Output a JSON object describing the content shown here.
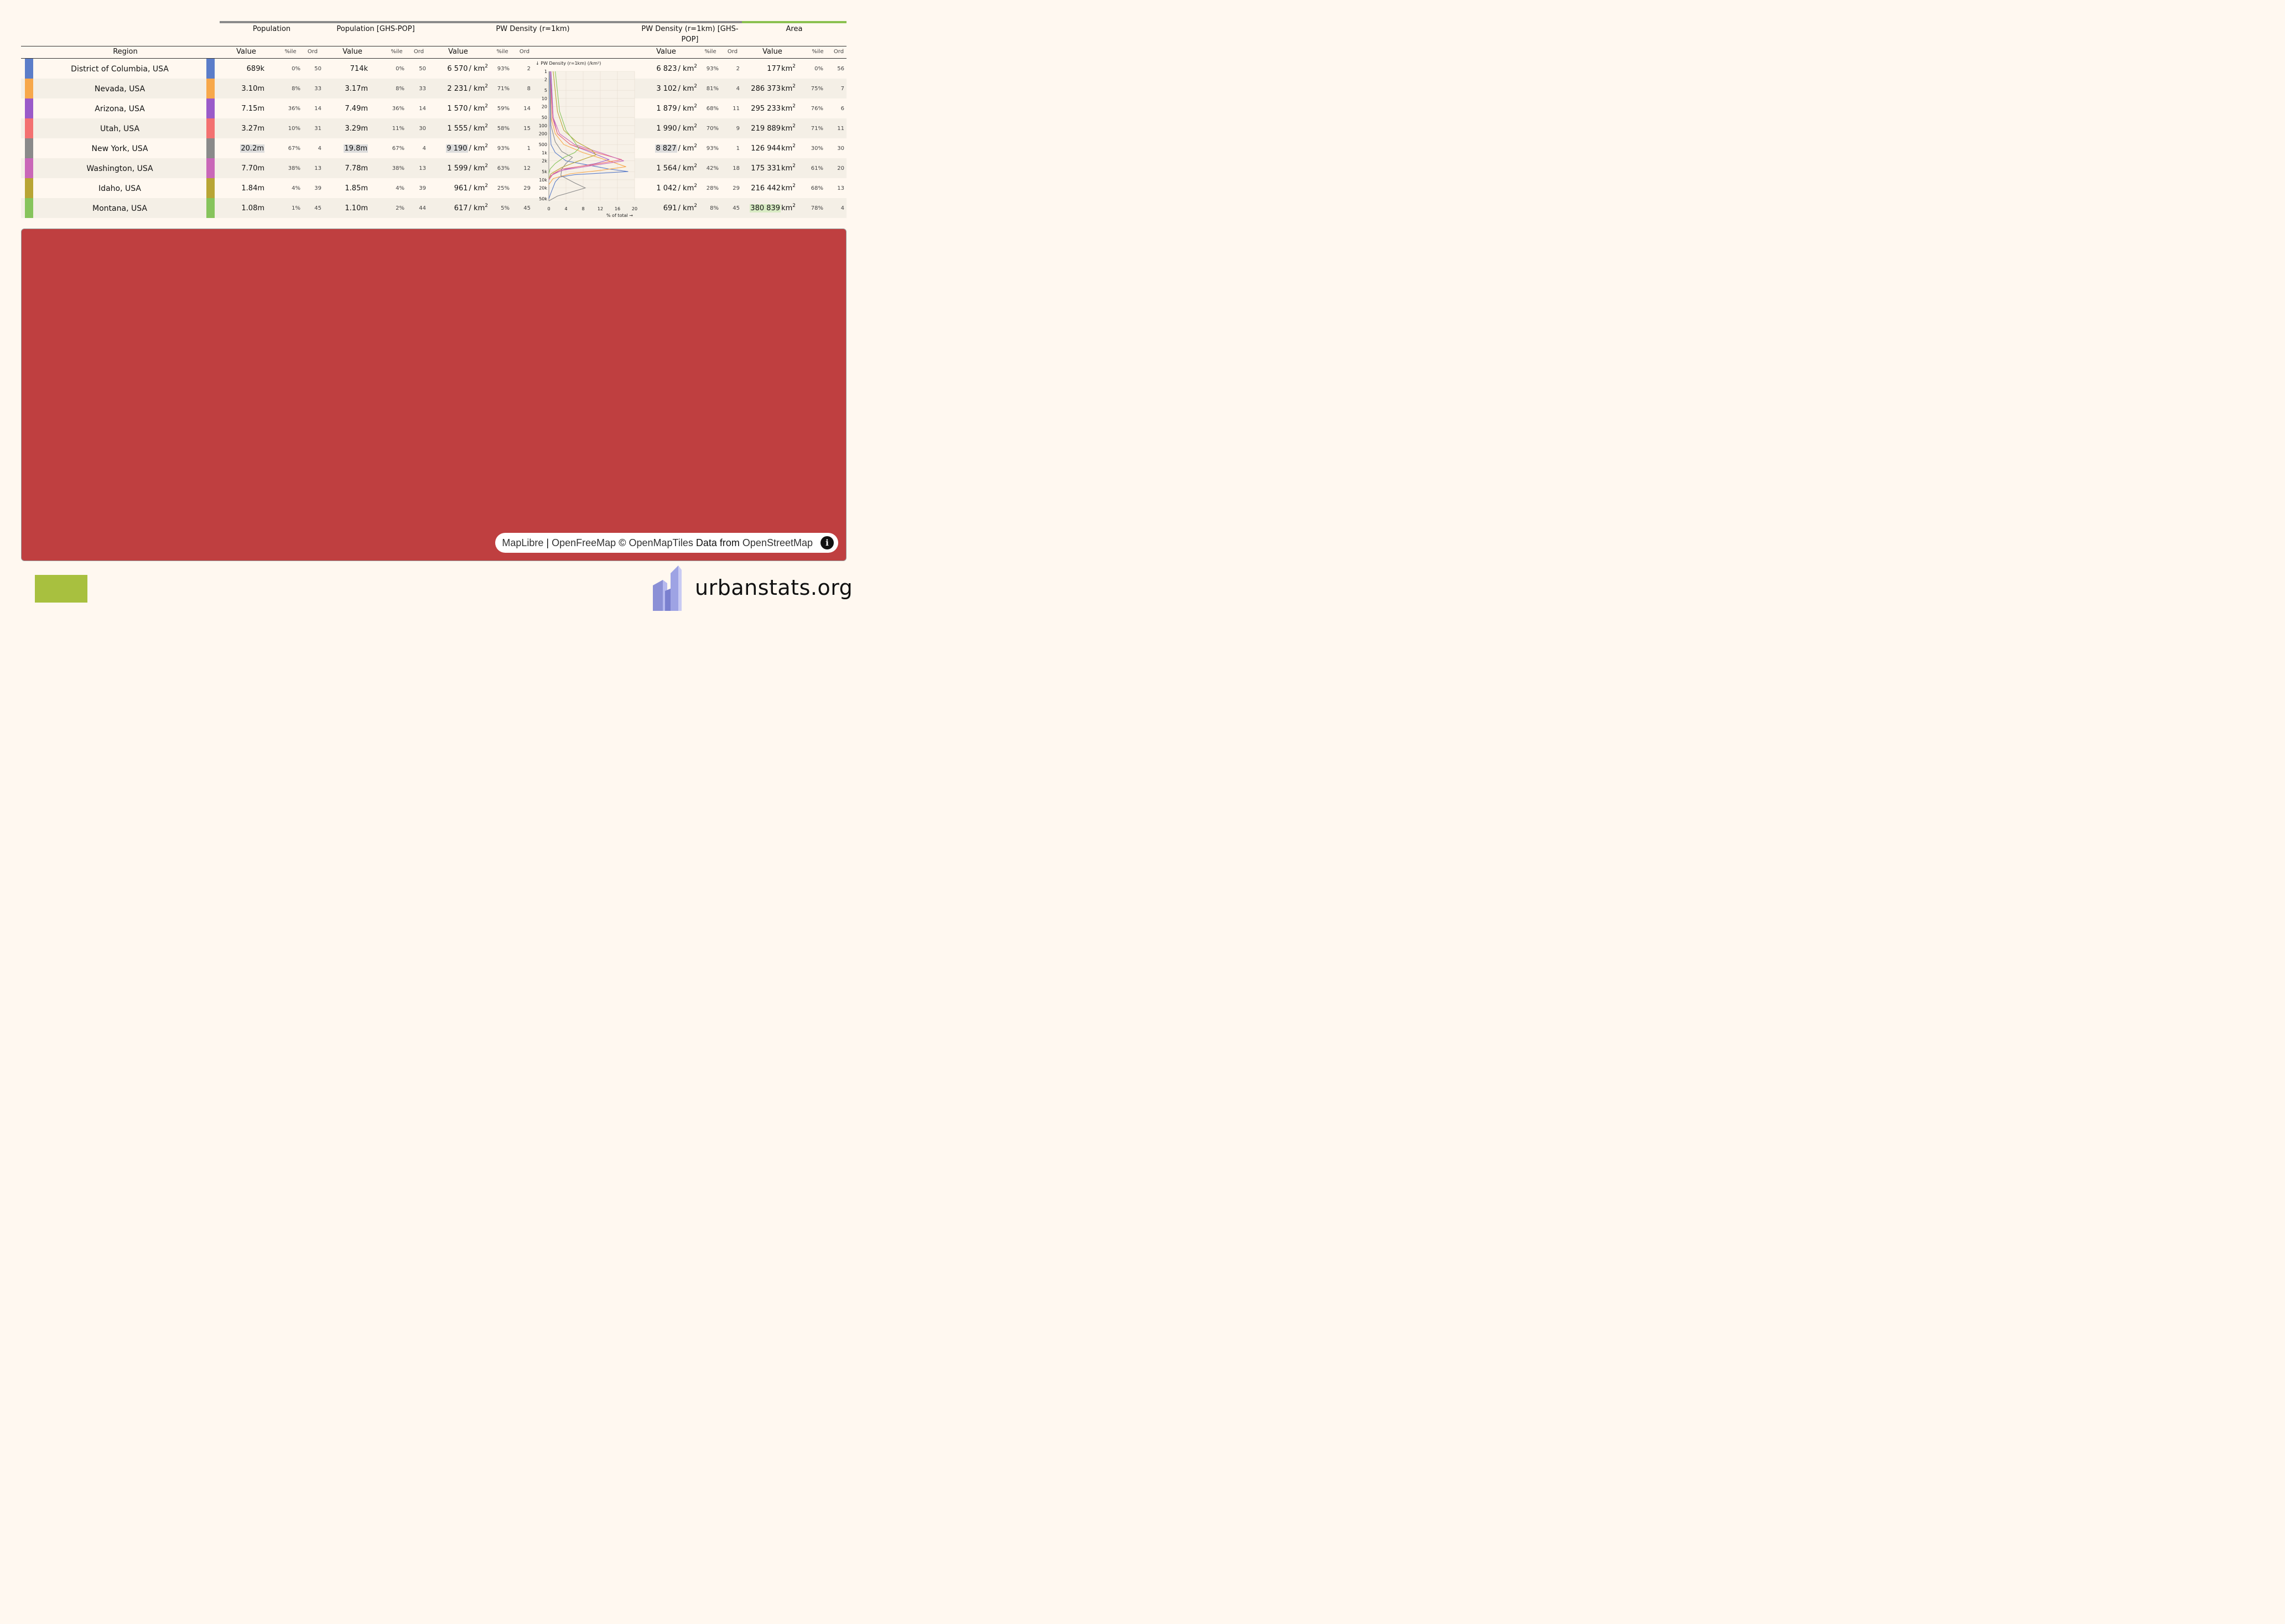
{
  "groups": [
    {
      "label": "Population",
      "bar_color": "#8a8a8a"
    },
    {
      "label": "Population [GHS-POP]",
      "bar_color": "#8a8a8a"
    },
    {
      "label": "PW Density (r=1km)",
      "bar_color": "#8a8a8a"
    },
    {
      "label": "PW Density (r=1km) [GHS-POP]",
      "bar_color": "#8a8a8a"
    },
    {
      "label": "Area",
      "bar_color": "#8ac14f"
    }
  ],
  "columns": {
    "region": "Region",
    "value": "Value",
    "pctile": "%ile",
    "ord": "Ord"
  },
  "unit_km2": "/ km",
  "unit_km2_area": "km",
  "rows": [
    {
      "region": "District of Columbia, USA",
      "color": "#5b7dc9",
      "pop": "689k",
      "pop_pct": "0%",
      "pop_ord": "50",
      "ghs": "714k",
      "ghs_pct": "0%",
      "ghs_ord": "50",
      "pwd": "6 570",
      "pwd_pct": "93%",
      "pwd_ord": "2",
      "pwdg": "6 823",
      "pwdg_pct": "93%",
      "pwdg_ord": "2",
      "area": "177",
      "area_pct": "0%",
      "area_ord": "56"
    },
    {
      "region": "Nevada, USA",
      "color": "#f7a84b",
      "pop": "3.10m",
      "pop_pct": "8%",
      "pop_ord": "33",
      "ghs": "3.17m",
      "ghs_pct": "8%",
      "ghs_ord": "33",
      "pwd": "2 231",
      "pwd_pct": "71%",
      "pwd_ord": "8",
      "pwdg": "3 102",
      "pwdg_pct": "81%",
      "pwdg_ord": "4",
      "area": "286 373",
      "area_pct": "75%",
      "area_ord": "7"
    },
    {
      "region": "Arizona, USA",
      "color": "#9a5bc9",
      "pop": "7.15m",
      "pop_pct": "36%",
      "pop_ord": "14",
      "ghs": "7.49m",
      "ghs_pct": "36%",
      "ghs_ord": "14",
      "pwd": "1 570",
      "pwd_pct": "59%",
      "pwd_ord": "14",
      "pwdg": "1 879",
      "pwdg_pct": "68%",
      "pwdg_ord": "11",
      "area": "295 233",
      "area_pct": "76%",
      "area_ord": "6"
    },
    {
      "region": "Utah, USA",
      "color": "#f37171",
      "pop": "3.27m",
      "pop_pct": "10%",
      "pop_ord": "31",
      "ghs": "3.29m",
      "ghs_pct": "11%",
      "ghs_ord": "30",
      "pwd": "1 555",
      "pwd_pct": "58%",
      "pwd_ord": "15",
      "pwdg": "1 990",
      "pwdg_pct": "70%",
      "pwdg_ord": "9",
      "area": "219 889",
      "area_pct": "71%",
      "area_ord": "11"
    },
    {
      "region": "New York, USA",
      "color": "#8a8a8a",
      "pop": "20.2m",
      "pop_pct": "67%",
      "pop_ord": "4",
      "ghs": "19.8m",
      "ghs_pct": "67%",
      "ghs_ord": "4",
      "pwd": "9 190",
      "pwd_pct": "93%",
      "pwd_ord": "1",
      "pwdg": "8 827",
      "pwdg_pct": "93%",
      "pwdg_ord": "1",
      "area": "126 944",
      "area_pct": "30%",
      "area_ord": "30"
    },
    {
      "region": "Washington, USA",
      "color": "#c967b8",
      "pop": "7.70m",
      "pop_pct": "38%",
      "pop_ord": "13",
      "ghs": "7.78m",
      "ghs_pct": "38%",
      "ghs_ord": "13",
      "pwd": "1 599",
      "pwd_pct": "63%",
      "pwd_ord": "12",
      "pwdg": "1 564",
      "pwdg_pct": "42%",
      "pwdg_ord": "18",
      "area": "175 331",
      "area_pct": "61%",
      "area_ord": "20"
    },
    {
      "region": "Idaho, USA",
      "color": "#b8a535",
      "pop": "1.84m",
      "pop_pct": "4%",
      "pop_ord": "39",
      "ghs": "1.85m",
      "ghs_pct": "4%",
      "ghs_ord": "39",
      "pwd": "961",
      "pwd_pct": "25%",
      "pwd_ord": "29",
      "pwdg": "1 042",
      "pwdg_pct": "28%",
      "pwdg_ord": "29",
      "area": "216 442",
      "area_pct": "68%",
      "area_ord": "13"
    },
    {
      "region": "Montana, USA",
      "color": "#86c45c",
      "pop": "1.08m",
      "pop_pct": "1%",
      "pop_ord": "45",
      "ghs": "1.10m",
      "ghs_pct": "2%",
      "ghs_ord": "44",
      "pwd": "617",
      "pwd_pct": "5%",
      "pwd_ord": "45",
      "pwdg": "691",
      "pwdg_pct": "8%",
      "pwdg_ord": "45",
      "area": "380 839",
      "area_pct": "78%",
      "area_ord": "4"
    }
  ],
  "chart_data": {
    "type": "line",
    "title": "↓ PW Density (r=1km) (/km²)",
    "xlabel": "% of total →",
    "x_ticks": [
      "0",
      "4",
      "8",
      "12",
      "16",
      "20"
    ],
    "y_ticks": [
      "1",
      "2",
      "5",
      "10",
      "20",
      "50",
      "100",
      "200",
      "500",
      "1k",
      "2k",
      "5k",
      "10k",
      "20k",
      "50k"
    ],
    "y_scale": "log",
    "xlim": [
      0,
      20
    ],
    "ylim": [
      1,
      60000
    ],
    "series": [
      {
        "color": "#5b7dc9",
        "points": [
          [
            0.2,
            1
          ],
          [
            0.3,
            100
          ],
          [
            0.5,
            500
          ],
          [
            1.5,
            1000
          ],
          [
            4,
            2000
          ],
          [
            14,
            4000
          ],
          [
            18.5,
            5000
          ],
          [
            6,
            6500
          ],
          [
            2.5,
            8000
          ],
          [
            1.5,
            12000
          ],
          [
            0.5,
            30000
          ],
          [
            0,
            50000
          ]
        ]
      },
      {
        "color": "#f7a84b",
        "points": [
          [
            0.3,
            1
          ],
          [
            0.5,
            50
          ],
          [
            1.5,
            200
          ],
          [
            3.5,
            500
          ],
          [
            8,
            1000
          ],
          [
            14,
            2000
          ],
          [
            18,
            3300
          ],
          [
            12,
            4500
          ],
          [
            5,
            6000
          ],
          [
            1,
            9000
          ],
          [
            0,
            15000
          ]
        ]
      },
      {
        "color": "#9a5bc9",
        "points": [
          [
            0.5,
            1
          ],
          [
            1,
            50
          ],
          [
            2,
            200
          ],
          [
            5,
            500
          ],
          [
            10,
            1000
          ],
          [
            14,
            1800
          ],
          [
            11,
            2500
          ],
          [
            4,
            4000
          ],
          [
            1,
            6000
          ],
          [
            0,
            10000
          ]
        ]
      },
      {
        "color": "#f37171",
        "points": [
          [
            0.3,
            1
          ],
          [
            0.8,
            50
          ],
          [
            2,
            200
          ],
          [
            5,
            500
          ],
          [
            11,
            1000
          ],
          [
            17,
            1800
          ],
          [
            10,
            2800
          ],
          [
            3,
            4000
          ],
          [
            1,
            6000
          ],
          [
            0,
            10000
          ]
        ]
      },
      {
        "color": "#8a8a8a",
        "points": [
          [
            0.3,
            1
          ],
          [
            0.5,
            100
          ],
          [
            1.5,
            400
          ],
          [
            3,
            900
          ],
          [
            5.5,
            1500
          ],
          [
            4,
            2500
          ],
          [
            3,
            4000
          ],
          [
            2.8,
            7000
          ],
          [
            6,
            13000
          ],
          [
            8.5,
            20000
          ],
          [
            2,
            40000
          ],
          [
            0,
            60000
          ]
        ]
      },
      {
        "color": "#c967b8",
        "points": [
          [
            0.3,
            1
          ],
          [
            1,
            50
          ],
          [
            2.5,
            200
          ],
          [
            6,
            500
          ],
          [
            12,
            1000
          ],
          [
            17.5,
            2000
          ],
          [
            10,
            3000
          ],
          [
            3,
            4500
          ],
          [
            0.5,
            7000
          ],
          [
            0,
            10000
          ]
        ]
      },
      {
        "color": "#b8a535",
        "points": [
          [
            1,
            1
          ],
          [
            2,
            30
          ],
          [
            3.5,
            150
          ],
          [
            6.5,
            400
          ],
          [
            10,
            800
          ],
          [
            11,
            1200
          ],
          [
            7,
            2000
          ],
          [
            3,
            3500
          ],
          [
            0.5,
            6000
          ],
          [
            0,
            9000
          ]
        ]
      },
      {
        "color": "#86c45c",
        "points": [
          [
            1.5,
            1
          ],
          [
            2.5,
            30
          ],
          [
            4,
            150
          ],
          [
            6,
            400
          ],
          [
            7,
            700
          ],
          [
            6,
            1000
          ],
          [
            3.5,
            1500
          ],
          [
            1.5,
            2500
          ],
          [
            0.3,
            4000
          ],
          [
            0,
            6000
          ]
        ]
      }
    ]
  },
  "map": {
    "fill": "#bf3f40",
    "attribution": {
      "maplibre": "MapLibre",
      "sep": "|",
      "openfreemap": "OpenFreeMap",
      "copyright": "©",
      "openmaptiles": "OpenMapTiles",
      "data_from": "Data from",
      "osm": "OpenStreetMap"
    },
    "info_icon": "i"
  },
  "footer": {
    "brand": "urbanstats.org",
    "logo_icon": "buildings-icon"
  }
}
